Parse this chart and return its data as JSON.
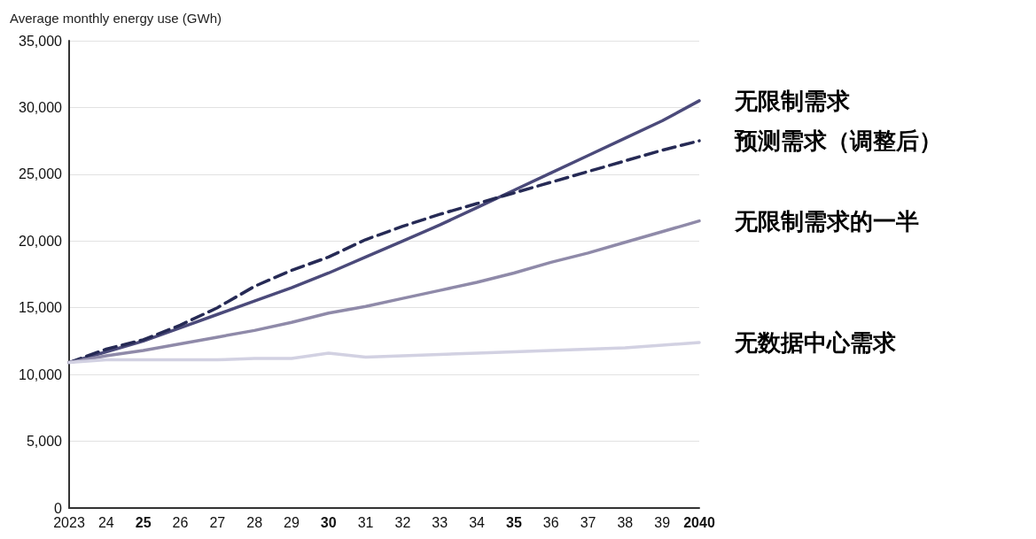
{
  "chart_data": {
    "type": "line",
    "ylabel": "Average monthly energy use (GWh)",
    "categories": [
      "2023",
      "24",
      "25",
      "26",
      "27",
      "28",
      "29",
      "30",
      "31",
      "32",
      "33",
      "34",
      "35",
      "36",
      "37",
      "38",
      "39",
      "2040"
    ],
    "series": [
      {
        "name": "无限制需求",
        "color": "#4b4a7a",
        "values": [
          10900,
          11700,
          12500,
          13500,
          14500,
          15500,
          16500,
          17600,
          18800,
          20000,
          21200,
          22500,
          23800,
          25100,
          26400,
          27700,
          29000,
          30500
        ]
      },
      {
        "name": "预测需求（调整后）",
        "color": "#262a55",
        "line_style": "dashed",
        "values": [
          10900,
          11900,
          12600,
          13700,
          15000,
          16600,
          17800,
          18800,
          20100,
          21100,
          22000,
          22800,
          23600,
          24400,
          25200,
          26000,
          26800,
          27500
        ]
      },
      {
        "name": "无限制需求的一半",
        "color": "#8f8aa9",
        "values": [
          10900,
          11400,
          11800,
          12300,
          12800,
          13300,
          13900,
          14600,
          15100,
          15700,
          16300,
          16900,
          17600,
          18400,
          19100,
          19900,
          20700,
          21500
        ]
      },
      {
        "name": "无数据中心需求",
        "color": "#d2d1e2",
        "values": [
          10900,
          11100,
          11100,
          11100,
          11100,
          11200,
          11200,
          11600,
          11300,
          11400,
          11500,
          11600,
          11700,
          11800,
          11900,
          12000,
          12200,
          12400
        ]
      }
    ],
    "ylim": [
      0,
      35000
    ],
    "yticks": [
      0,
      {
        "value": 5000,
        "label": "5,000"
      },
      {
        "value": 10000,
        "label": "10,000"
      },
      {
        "value": 15000,
        "label": "15,000"
      },
      {
        "value": 20000,
        "label": "20,000"
      },
      {
        "value": 25000,
        "label": "25,000"
      },
      {
        "value": 30000,
        "label": "30,000"
      },
      {
        "value": 35000,
        "label": "35,000"
      }
    ],
    "grid": "y",
    "legend": false,
    "marker": "none",
    "line_style": "solid"
  }
}
